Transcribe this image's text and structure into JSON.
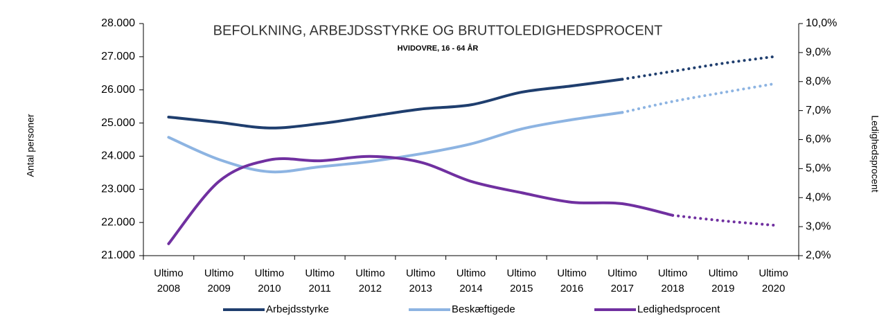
{
  "chart_data": {
    "type": "line",
    "title": "BEFOLKNING, ARBEJDSSTYRKE OG BRUTTOLEDIGHEDSPROCENT",
    "subtitle": "HVIDOVRE, 16 - 64 ÅR",
    "y_label": "Antal personer",
    "y2_label": "Ledighedsprocent",
    "categories": [
      "Ultimo 2008",
      "Ultimo 2009",
      "Ultimo 2010",
      "Ultimo 2011",
      "Ultimo 2012",
      "Ultimo 2013",
      "Ultimo 2014",
      "Ultimo 2015",
      "Ultimo 2016",
      "Ultimo 2017",
      "Ultimo 2018",
      "Ultimo 2019",
      "Ultimo 2020"
    ],
    "ylim": [
      21000,
      28000
    ],
    "yticks": [
      {
        "value": 21000,
        "label": "21.000"
      },
      {
        "value": 22000,
        "label": "22.000"
      },
      {
        "value": 23000,
        "label": "23.000"
      },
      {
        "value": 24000,
        "label": "24.000"
      },
      {
        "value": 25000,
        "label": "25.000"
      },
      {
        "value": 26000,
        "label": "26.000"
      },
      {
        "value": 27000,
        "label": "27.000"
      },
      {
        "value": 28000,
        "label": "28.000"
      }
    ],
    "y2lim": [
      2,
      10
    ],
    "y2ticks": [
      {
        "value": 2,
        "label": "2,0%"
      },
      {
        "value": 3,
        "label": "3,0%"
      },
      {
        "value": 4,
        "label": "4,0%"
      },
      {
        "value": 5,
        "label": "5,0%"
      },
      {
        "value": 6,
        "label": "6,0%"
      },
      {
        "value": 7,
        "label": "7,0%"
      },
      {
        "value": 8,
        "label": "8,0%"
      },
      {
        "value": 9,
        "label": "9,0%"
      },
      {
        "value": 10,
        "label": "10,0%"
      }
    ],
    "grid": false,
    "legend": "bottom",
    "series": [
      {
        "name": "Arbejdsstyrke",
        "color": "#1f3e6e",
        "dotted_from": 9,
        "values": [
          25180,
          25020,
          24850,
          24980,
          25200,
          25420,
          25550,
          25930,
          26120,
          26320,
          26560,
          26800,
          27000
        ]
      },
      {
        "name": "Beskæftigede",
        "color": "#8db4e2",
        "dotted_from": 9,
        "values": [
          24570,
          23900,
          23530,
          23680,
          23840,
          24070,
          24370,
          24820,
          25100,
          25320,
          25650,
          25920,
          26180
        ]
      },
      {
        "name": "Ledighedsprocent",
        "color": "#7030a0",
        "axis": "y2",
        "dotted_from": 10,
        "values": [
          2.41,
          4.56,
          5.3,
          5.27,
          5.42,
          5.22,
          4.56,
          4.17,
          3.84,
          3.79,
          3.39,
          3.2,
          3.05
        ]
      }
    ]
  }
}
